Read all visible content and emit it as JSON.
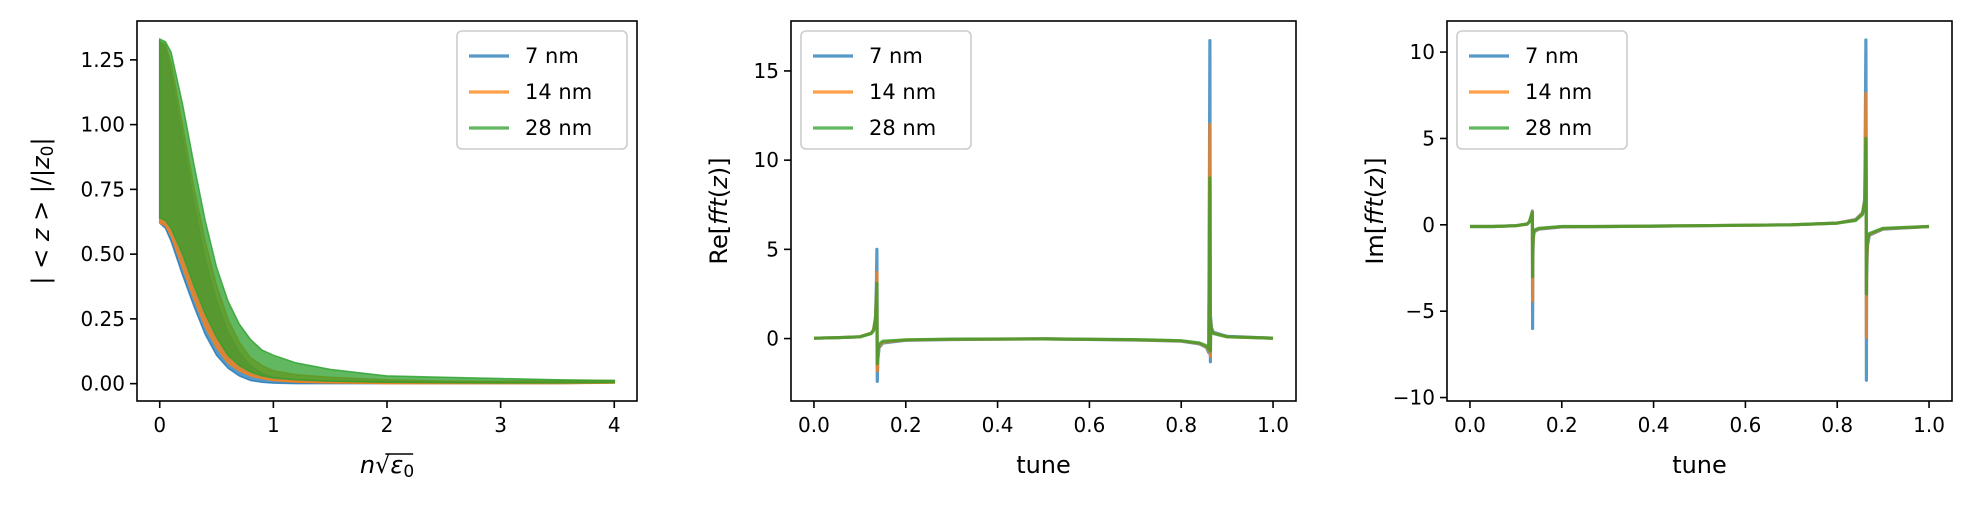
{
  "colors": {
    "blue": "#1f77b4",
    "orange": "#ff7f0e",
    "green": "#2ca02c"
  },
  "chart_data": [
    {
      "type": "area",
      "ylabel_parts": [
        "| < ",
        "z",
        " > |/|",
        "z",
        "0",
        "|"
      ],
      "xlabel_parts": [
        "n",
        "√",
        "ε",
        "0"
      ],
      "xlim": [
        -0.2,
        4.2
      ],
      "ylim": [
        -0.067,
        1.4
      ],
      "x_ticks": [
        0,
        1,
        2,
        3,
        4
      ],
      "x_tick_labels": [
        "0",
        "1",
        "2",
        "3",
        "4"
      ],
      "y_ticks": [
        0,
        0.25,
        0.5,
        0.75,
        1.0,
        1.25
      ],
      "y_tick_labels": [
        "0.00",
        "0.25",
        "0.50",
        "0.75",
        "1.00",
        "1.25"
      ],
      "legend_position": "top-right",
      "series": [
        {
          "name": "7 nm",
          "color": "#1f77b4",
          "x": [
            0,
            0.05,
            0.1,
            0.2,
            0.3,
            0.4,
            0.5,
            0.6,
            0.7,
            0.8,
            0.9,
            1.0,
            1.2,
            1.5,
            2.0,
            2.5,
            3.0,
            3.5,
            4.0
          ],
          "upper": [
            1.32,
            1.3,
            1.2,
            0.95,
            0.7,
            0.48,
            0.32,
            0.2,
            0.12,
            0.07,
            0.04,
            0.025,
            0.015,
            0.01,
            0.008,
            0.008,
            0.008,
            0.01,
            0.012
          ],
          "lower": [
            0.62,
            0.6,
            0.55,
            0.42,
            0.3,
            0.19,
            0.11,
            0.06,
            0.03,
            0.012,
            0.005,
            0.002,
            0,
            0,
            0,
            0,
            0,
            0,
            0.003
          ]
        },
        {
          "name": "14 nm",
          "color": "#ff7f0e",
          "x": [
            0,
            0.05,
            0.1,
            0.2,
            0.3,
            0.4,
            0.5,
            0.6,
            0.7,
            0.8,
            0.9,
            1.0,
            1.2,
            1.5,
            2.0,
            2.5,
            3.0,
            3.5,
            4.0
          ],
          "upper": [
            1.32,
            1.31,
            1.24,
            1.0,
            0.76,
            0.55,
            0.38,
            0.25,
            0.16,
            0.1,
            0.07,
            0.05,
            0.035,
            0.025,
            0.015,
            0.01,
            0.01,
            0.012,
            0.012
          ],
          "lower": [
            0.62,
            0.61,
            0.57,
            0.45,
            0.33,
            0.22,
            0.14,
            0.08,
            0.05,
            0.03,
            0.02,
            0.012,
            0.006,
            0.003,
            0,
            0,
            0,
            0,
            0.002
          ]
        },
        {
          "name": "28 nm",
          "color": "#2ca02c",
          "x": [
            0,
            0.05,
            0.1,
            0.2,
            0.3,
            0.4,
            0.5,
            0.6,
            0.7,
            0.8,
            0.9,
            1.0,
            1.2,
            1.5,
            2.0,
            2.5,
            3.0,
            3.5,
            4.0
          ],
          "upper": [
            1.33,
            1.32,
            1.28,
            1.08,
            0.85,
            0.63,
            0.45,
            0.32,
            0.23,
            0.17,
            0.13,
            0.11,
            0.08,
            0.055,
            0.03,
            0.025,
            0.02,
            0.015,
            0.012
          ],
          "lower": [
            0.64,
            0.63,
            0.6,
            0.5,
            0.38,
            0.27,
            0.18,
            0.11,
            0.07,
            0.045,
            0.03,
            0.022,
            0.015,
            0.01,
            0.005,
            0.004,
            0.003,
            0.003,
            0.004
          ]
        }
      ]
    },
    {
      "type": "line",
      "ylabel_parts": [
        "Re[",
        "fft",
        "(",
        "z",
        ")]"
      ],
      "xlabel": "tune",
      "xlim": [
        -0.05,
        1.05
      ],
      "ylim": [
        -3.5,
        17.8
      ],
      "x_ticks": [
        0,
        0.2,
        0.4,
        0.6,
        0.8,
        1.0
      ],
      "x_tick_labels": [
        "0.0",
        "0.2",
        "0.4",
        "0.6",
        "0.8",
        "1.0"
      ],
      "y_ticks": [
        0,
        5,
        10,
        15
      ],
      "y_tick_labels": [
        "0",
        "5",
        "10",
        "15"
      ],
      "legend_position": "top-left",
      "baseline": 0,
      "series": [
        {
          "name": "7 nm",
          "color": "#1f77b4",
          "x": [
            0.0,
            0.05,
            0.1,
            0.125,
            0.13,
            0.134,
            0.136,
            0.137,
            0.1375,
            0.138,
            0.139,
            0.142,
            0.15,
            0.2,
            0.3,
            0.5,
            0.7,
            0.8,
            0.84,
            0.855,
            0.86,
            0.8625,
            0.863,
            0.8635,
            0.864,
            0.866,
            0.87,
            0.9,
            1.0
          ],
          "y": [
            0.02,
            0.05,
            0.1,
            0.3,
            0.5,
            1.2,
            3.0,
            5.0,
            -0.5,
            -2.4,
            -1.2,
            -0.5,
            -0.25,
            -0.1,
            -0.05,
            -0.02,
            -0.08,
            -0.15,
            -0.3,
            -0.5,
            -0.8,
            16.7,
            4.0,
            -1.3,
            1.2,
            0.6,
            0.35,
            0.12,
            0.02
          ]
        },
        {
          "name": "14 nm",
          "color": "#ff7f0e",
          "x": [
            0.0,
            0.05,
            0.1,
            0.125,
            0.13,
            0.134,
            0.136,
            0.137,
            0.1375,
            0.138,
            0.139,
            0.142,
            0.15,
            0.2,
            0.3,
            0.5,
            0.7,
            0.8,
            0.84,
            0.855,
            0.86,
            0.8625,
            0.863,
            0.8635,
            0.864,
            0.866,
            0.87,
            0.9,
            1.0
          ],
          "y": [
            0.02,
            0.05,
            0.1,
            0.3,
            0.5,
            1.1,
            2.4,
            3.7,
            -0.4,
            -1.8,
            -0.9,
            -0.4,
            -0.2,
            -0.08,
            -0.04,
            -0.02,
            -0.07,
            -0.13,
            -0.27,
            -0.45,
            -0.7,
            12.0,
            3.0,
            -1.0,
            1.0,
            0.5,
            0.3,
            0.1,
            0.02
          ]
        },
        {
          "name": "28 nm",
          "color": "#2ca02c",
          "x": [
            0.0,
            0.05,
            0.1,
            0.125,
            0.13,
            0.134,
            0.136,
            0.137,
            0.1375,
            0.138,
            0.139,
            0.142,
            0.15,
            0.2,
            0.3,
            0.5,
            0.7,
            0.8,
            0.84,
            0.855,
            0.86,
            0.8625,
            0.863,
            0.8635,
            0.864,
            0.866,
            0.87,
            0.9,
            1.0
          ],
          "y": [
            0.02,
            0.05,
            0.1,
            0.28,
            0.45,
            1.0,
            2.1,
            3.1,
            -0.3,
            -1.4,
            -0.7,
            -0.3,
            -0.15,
            -0.07,
            -0.03,
            -0.02,
            -0.06,
            -0.12,
            -0.25,
            -0.4,
            -0.6,
            9.0,
            2.4,
            -0.7,
            0.9,
            0.45,
            0.28,
            0.1,
            0.02
          ]
        }
      ]
    },
    {
      "type": "line",
      "ylabel_parts": [
        "Im[",
        "fft",
        "(",
        "z",
        ")]"
      ],
      "xlabel": "tune",
      "xlim": [
        -0.05,
        1.05
      ],
      "ylim": [
        -10.2,
        11.8
      ],
      "x_ticks": [
        0,
        0.2,
        0.4,
        0.6,
        0.8,
        1.0
      ],
      "x_tick_labels": [
        "0.0",
        "0.2",
        "0.4",
        "0.6",
        "0.8",
        "1.0"
      ],
      "y_ticks": [
        -10,
        -5,
        0,
        5,
        10
      ],
      "y_tick_labels": [
        "−10",
        "−5",
        "0",
        "5",
        "10"
      ],
      "legend_position": "top-left",
      "baseline": -0.1,
      "series": [
        {
          "name": "7 nm",
          "color": "#1f77b4",
          "x": [
            0.0,
            0.05,
            0.1,
            0.125,
            0.13,
            0.134,
            0.136,
            0.1365,
            0.137,
            0.138,
            0.14,
            0.15,
            0.2,
            0.3,
            0.5,
            0.7,
            0.8,
            0.84,
            0.855,
            0.86,
            0.8625,
            0.863,
            0.8635,
            0.864,
            0.866,
            0.87,
            0.9,
            1.0
          ],
          "y": [
            -0.1,
            -0.1,
            -0.05,
            0.05,
            0.2,
            0.6,
            0.8,
            -6.0,
            -2.0,
            -0.8,
            -0.4,
            -0.25,
            -0.12,
            -0.1,
            -0.05,
            0,
            0.1,
            0.3,
            0.7,
            1.5,
            10.7,
            3.0,
            -9.0,
            -3.0,
            -1.2,
            -0.6,
            -0.25,
            -0.1
          ]
        },
        {
          "name": "14 nm",
          "color": "#ff7f0e",
          "x": [
            0.0,
            0.05,
            0.1,
            0.125,
            0.13,
            0.134,
            0.136,
            0.1365,
            0.137,
            0.138,
            0.14,
            0.15,
            0.2,
            0.3,
            0.5,
            0.7,
            0.8,
            0.84,
            0.855,
            0.86,
            0.8625,
            0.863,
            0.8635,
            0.864,
            0.866,
            0.87,
            0.9,
            1.0
          ],
          "y": [
            -0.1,
            -0.1,
            -0.05,
            0.05,
            0.2,
            0.6,
            0.75,
            -4.4,
            -1.6,
            -0.7,
            -0.35,
            -0.22,
            -0.11,
            -0.1,
            -0.05,
            0,
            0.1,
            0.28,
            0.65,
            1.4,
            7.6,
            2.4,
            -6.5,
            -2.4,
            -1.0,
            -0.55,
            -0.22,
            -0.1
          ]
        },
        {
          "name": "28 nm",
          "color": "#2ca02c",
          "x": [
            0.0,
            0.05,
            0.1,
            0.125,
            0.13,
            0.134,
            0.136,
            0.1365,
            0.137,
            0.138,
            0.14,
            0.15,
            0.2,
            0.3,
            0.5,
            0.7,
            0.8,
            0.84,
            0.855,
            0.86,
            0.8625,
            0.863,
            0.8635,
            0.864,
            0.866,
            0.87,
            0.9,
            1.0
          ],
          "y": [
            -0.1,
            -0.1,
            -0.05,
            0.05,
            0.2,
            0.55,
            0.7,
            -3.0,
            -1.2,
            -0.6,
            -0.3,
            -0.2,
            -0.1,
            -0.1,
            -0.05,
            0,
            0.1,
            0.25,
            0.6,
            1.3,
            5.0,
            1.8,
            -4.0,
            -1.8,
            -0.8,
            -0.5,
            -0.2,
            -0.1
          ]
        }
      ]
    }
  ]
}
